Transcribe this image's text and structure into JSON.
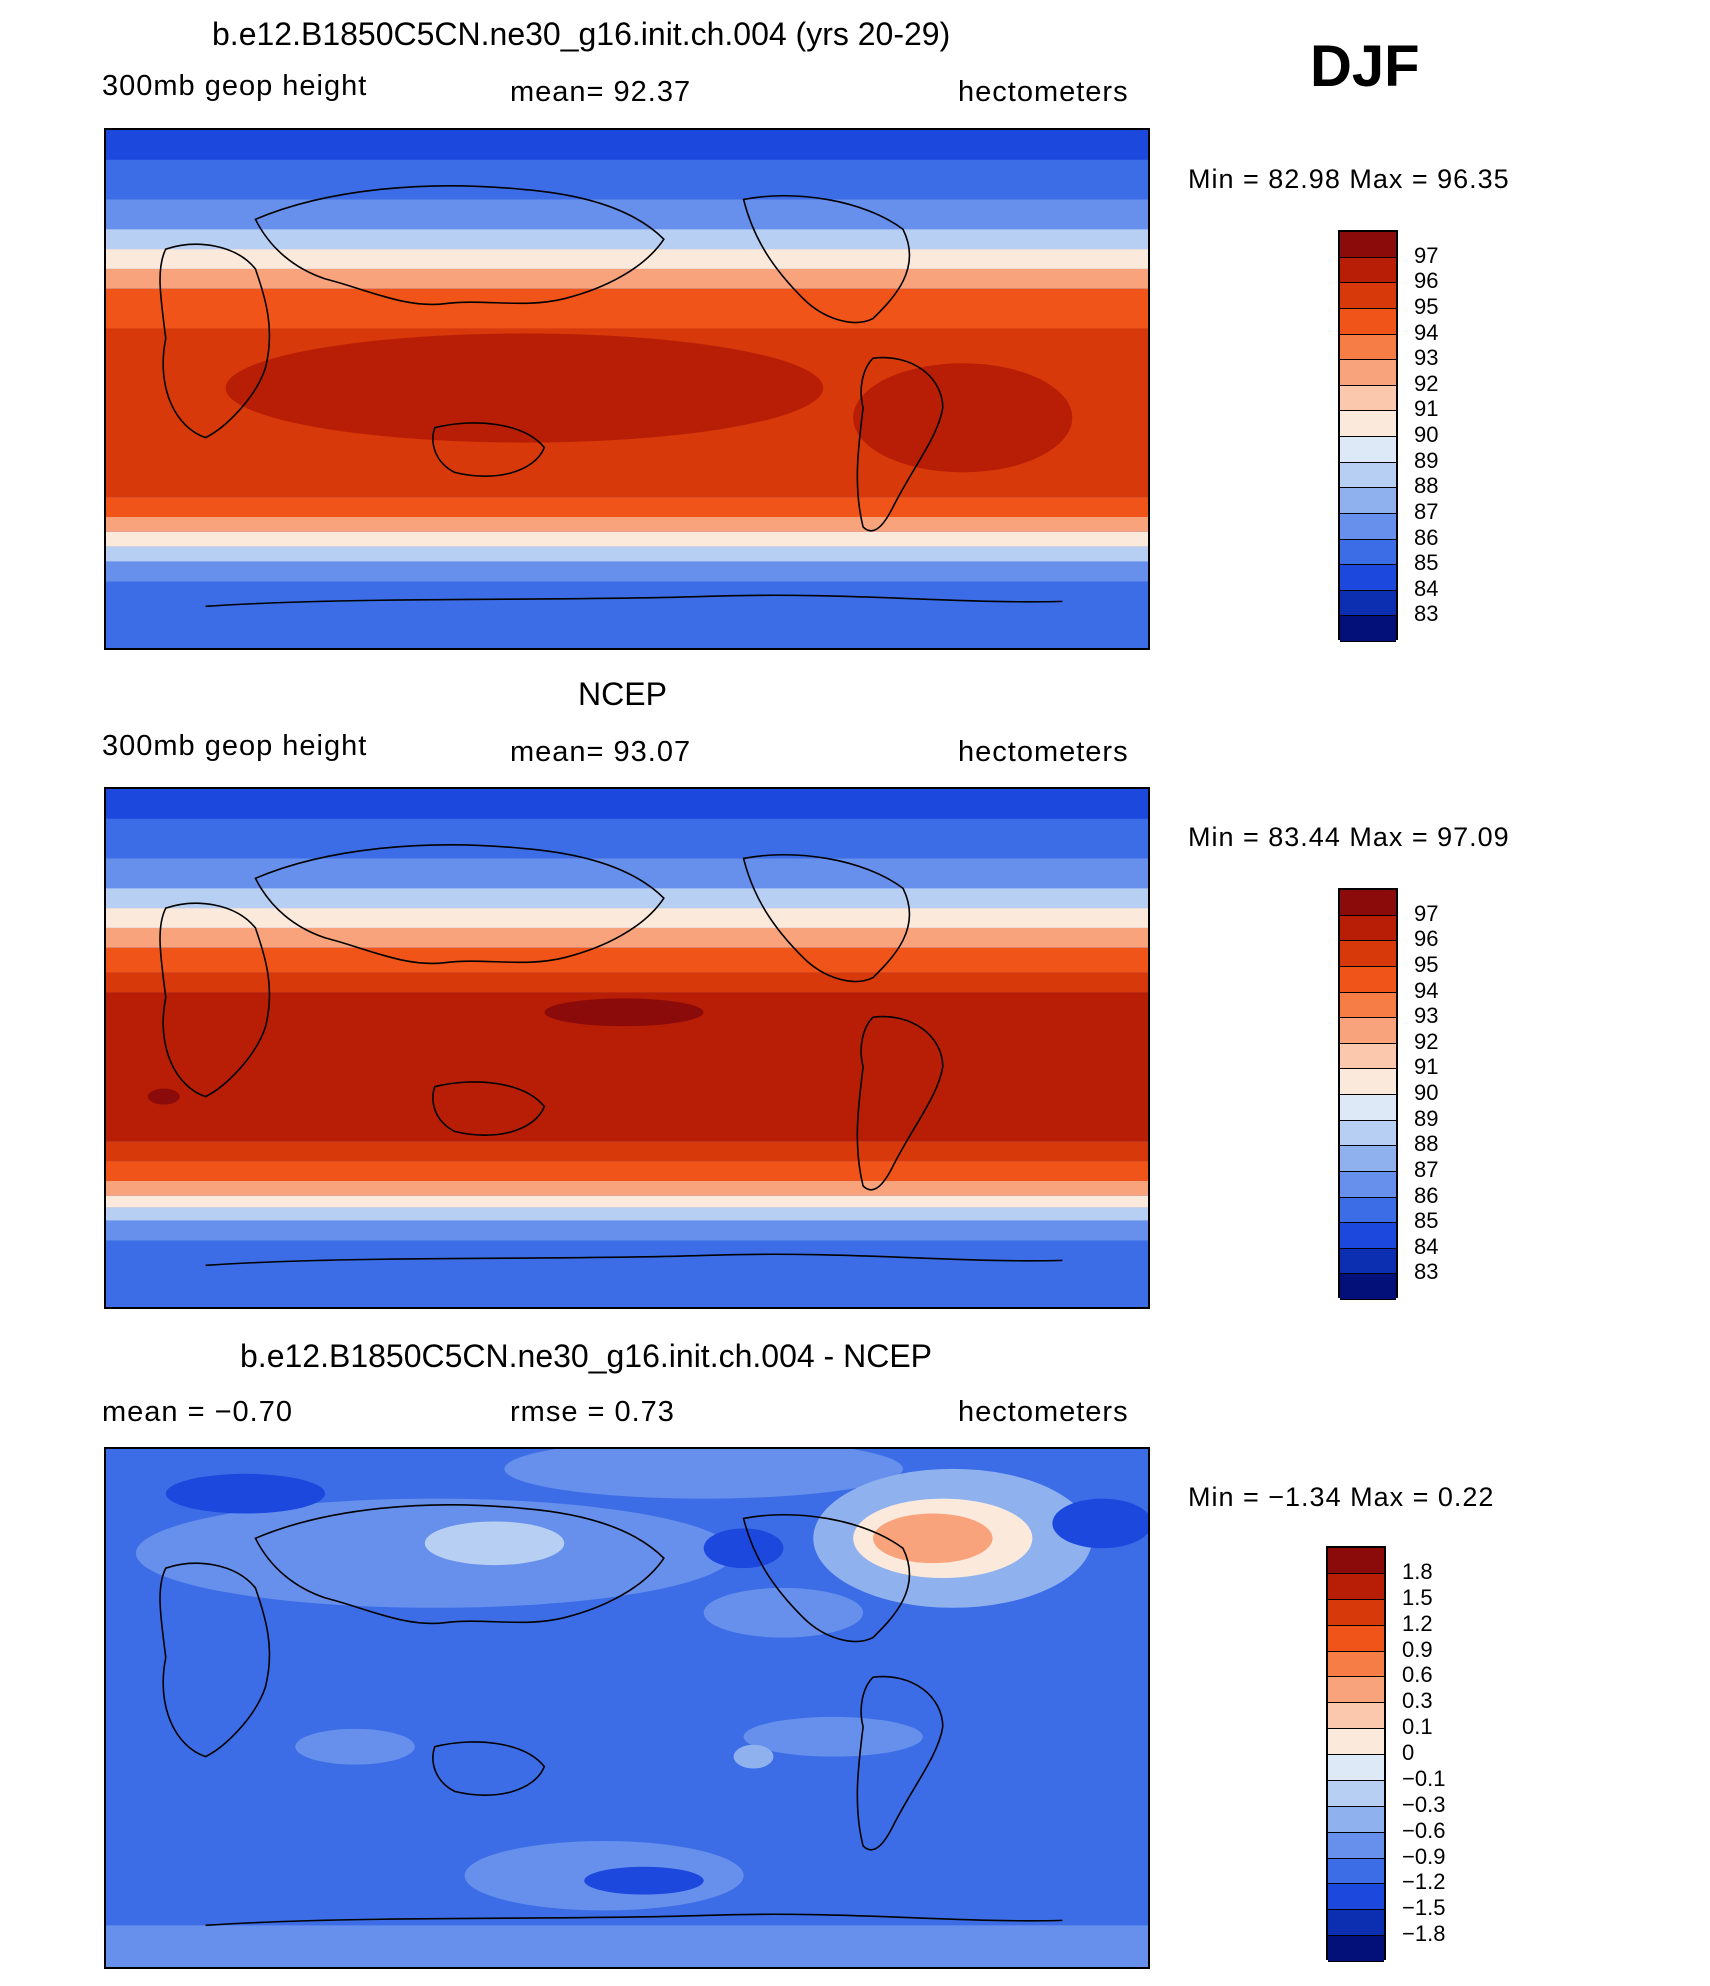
{
  "season": "DJF",
  "panels": [
    {
      "title": "b.e12.B1850C5CN.ne30_g16.init.ch.004 (yrs 20-29)",
      "left": "300mb  geop  height",
      "middle": "mean=   92.37",
      "right": "hectometers",
      "minmax": "Min  =    82.98  Max  =    96.35",
      "colorbar": {
        "labels": [
          "97",
          "96",
          "95",
          "94",
          "93",
          "92",
          "91",
          "90",
          "89",
          "88",
          "87",
          "86",
          "85",
          "84",
          "83"
        ],
        "colors": [
          "#8b0a0a",
          "#b81e06",
          "#d8390a",
          "#f05418",
          "#f67d45",
          "#f9a37c",
          "#fbc8ad",
          "#fbe9db",
          "#dde9f7",
          "#b7cff3",
          "#8fb2ef",
          "#6690ec",
          "#3d6de6",
          "#1c48de",
          "#0c2eb0",
          "#04107a"
        ]
      }
    },
    {
      "title": "NCEP",
      "left": "300mb  geop  height",
      "middle": "mean=   93.07",
      "right": "hectometers",
      "minmax": "Min  =    83.44  Max  =    97.09",
      "colorbar": {
        "labels": [
          "97",
          "96",
          "95",
          "94",
          "93",
          "92",
          "91",
          "90",
          "89",
          "88",
          "87",
          "86",
          "85",
          "84",
          "83"
        ],
        "colors": [
          "#8b0a0a",
          "#b81e06",
          "#d8390a",
          "#f05418",
          "#f67d45",
          "#f9a37c",
          "#fbc8ad",
          "#fbe9db",
          "#dde9f7",
          "#b7cff3",
          "#8fb2ef",
          "#6690ec",
          "#3d6de6",
          "#1c48de",
          "#0c2eb0",
          "#04107a"
        ]
      }
    },
    {
      "title": "b.e12.B1850C5CN.ne30_g16.init.ch.004 - NCEP",
      "left": "mean  =    −0.70",
      "middle": "rmse  =     0.73",
      "right": "hectometers",
      "minmax": "Min  =   −1.34  Max  =      0.22",
      "colorbar": {
        "labels": [
          "1.8",
          "1.5",
          "1.2",
          "0.9",
          "0.6",
          "0.3",
          "0.1",
          "0",
          "−0.1",
          "−0.3",
          "−0.6",
          "−0.9",
          "−1.2",
          "−1.5",
          "−1.8"
        ],
        "colors": [
          "#8b0a0a",
          "#b81e06",
          "#d8390a",
          "#f05418",
          "#f67d45",
          "#f9a37c",
          "#fbc8ad",
          "#fbe9db",
          "#dde9f7",
          "#b7cff3",
          "#8fb2ef",
          "#6690ec",
          "#3d6de6",
          "#1c48de",
          "#0c2eb0",
          "#04107a"
        ]
      }
    }
  ],
  "map_palette": {
    "deep_red": "#b81e06",
    "red": "#d8390a",
    "orange": "#f05418",
    "blue": "#3d6de6",
    "dark_blue": "#1c48de",
    "mid_blue": "#6690ec",
    "light_blue": "#8fb2ef",
    "pale_blue": "#b7cff3",
    "peach": "#f9a37c",
    "land": "#000000"
  }
}
